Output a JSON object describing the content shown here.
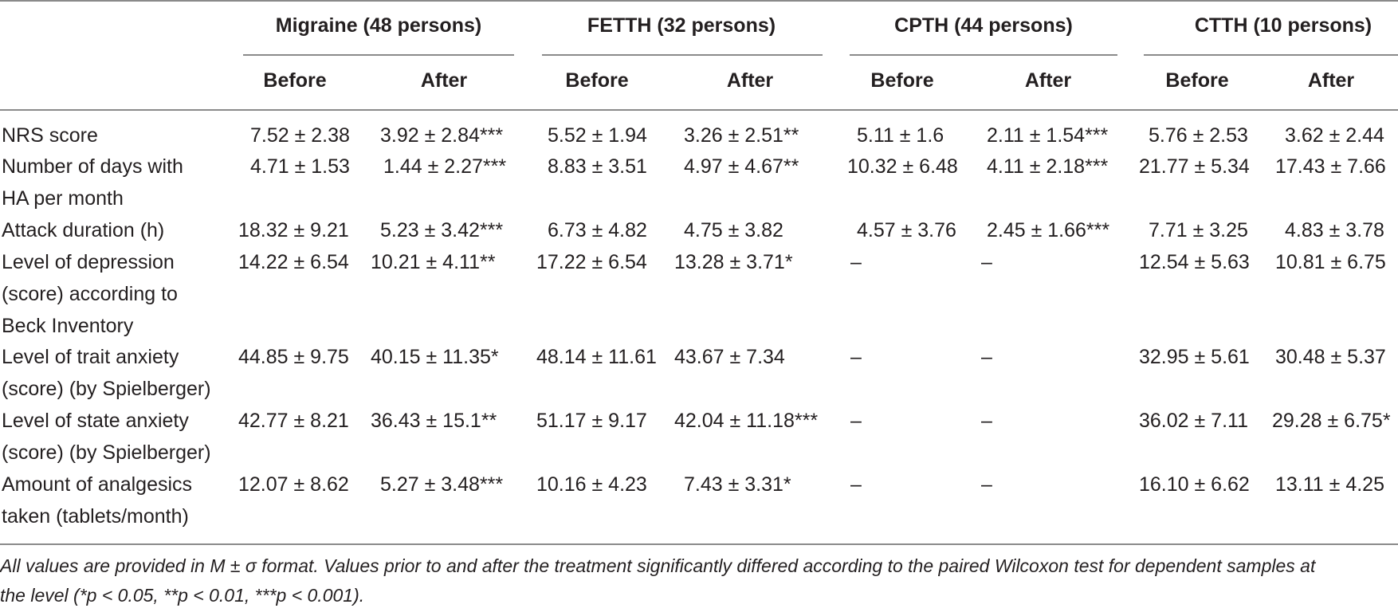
{
  "groups": [
    "Migraine (48 persons)",
    "FETTH (32 persons)",
    "CPTH (44 persons)",
    "CTTH (10 persons)"
  ],
  "subheaders": [
    "Before",
    "After",
    "Before",
    "After",
    "Before",
    "After",
    "Before",
    "After"
  ],
  "rows": [
    {
      "label": [
        "NRS score"
      ],
      "cells": [
        "7.52 ± 2.38",
        "3.92 ± 2.84***",
        "5.52 ± 1.94",
        "3.26 ± 2.51**",
        "5.11 ± 1.6",
        "2.11 ± 1.54***",
        "5.76 ± 2.53",
        "3.62 ± 2.44"
      ]
    },
    {
      "label": [
        "Number of days with",
        "HA per month"
      ],
      "cells": [
        "4.71 ± 1.53",
        "1.44 ± 2.27***",
        "8.83 ± 3.51",
        "4.97 ± 4.67**",
        "10.32 ± 6.48",
        "4.11 ± 2.18***",
        "21.77 ± 5.34",
        "17.43 ± 7.66"
      ]
    },
    {
      "label": [
        "Attack duration (h)"
      ],
      "cells": [
        "18.32 ± 9.21",
        "5.23 ± 3.42***",
        "6.73 ± 4.82",
        "4.75 ± 3.82",
        "4.57 ± 3.76",
        "2.45 ± 1.66***",
        "7.71 ± 3.25",
        "4.83 ± 3.78"
      ]
    },
    {
      "label": [
        "Level of depression",
        "(score) according to",
        "Beck Inventory"
      ],
      "cells": [
        "14.22 ± 6.54",
        "10.21 ± 4.11**",
        "17.22 ± 6.54",
        "13.28 ± 3.71*",
        "–",
        "–",
        "12.54 ± 5.63",
        "10.81 ± 6.75"
      ]
    },
    {
      "label": [
        "Level of trait anxiety",
        "(score) (by Spielberger)"
      ],
      "cells": [
        "44.85 ± 9.75",
        "40.15 ± 11.35*",
        "48.14 ± 11.61",
        "43.67 ± 7.34",
        "–",
        "–",
        "32.95 ± 5.61",
        "30.48 ± 5.37"
      ]
    },
    {
      "label": [
        "Level of state anxiety",
        "(score) (by Spielberger)"
      ],
      "cells": [
        "42.77 ± 8.21",
        "36.43 ± 15.1**",
        "51.17 ± 9.17",
        "42.04 ± 11.18***",
        "–",
        "–",
        "36.02 ± 7.11",
        "29.28 ± 6.75*"
      ]
    },
    {
      "label": [
        "Amount of analgesics",
        "taken (tablets/month)"
      ],
      "cells": [
        "12.07 ± 8.62",
        "5.27 ± 3.48***",
        "10.16 ± 4.23",
        "7.43 ± 3.31*",
        "–",
        "–",
        "16.10 ± 6.62",
        "13.11 ± 4.25"
      ]
    }
  ],
  "footnote": [
    "All values are provided in M ± σ format. Values prior to and after the treatment significantly differed according to the paired Wilcoxon test for dependent samples at",
    "the level (*p < 0.05, **p < 0.01, ***p < 0.001)."
  ]
}
